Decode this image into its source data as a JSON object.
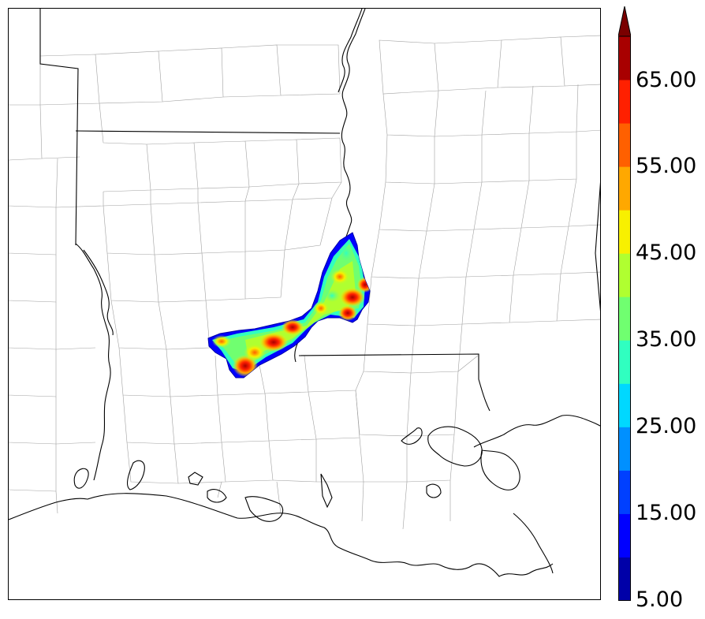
{
  "colorbar": {
    "labels": [
      "65.00",
      "55.00",
      "45.00",
      "35.00",
      "25.00",
      "15.00",
      "5.00"
    ],
    "levels": [
      5,
      10,
      15,
      20,
      25,
      30,
      35,
      40,
      45,
      50,
      55,
      60,
      65,
      70
    ],
    "colors": [
      "#0000a8",
      "#0000ff",
      "#0040ff",
      "#0090ff",
      "#00d8ff",
      "#30ffc0",
      "#70ff70",
      "#b0ff30",
      "#f8f000",
      "#ffa800",
      "#ff6000",
      "#ff2000",
      "#a80000"
    ],
    "extend_color": "#7a0000"
  },
  "map": {
    "state_line_color": "#000000",
    "county_line_color": "#9a9a9a",
    "background": "#ffffff"
  }
}
